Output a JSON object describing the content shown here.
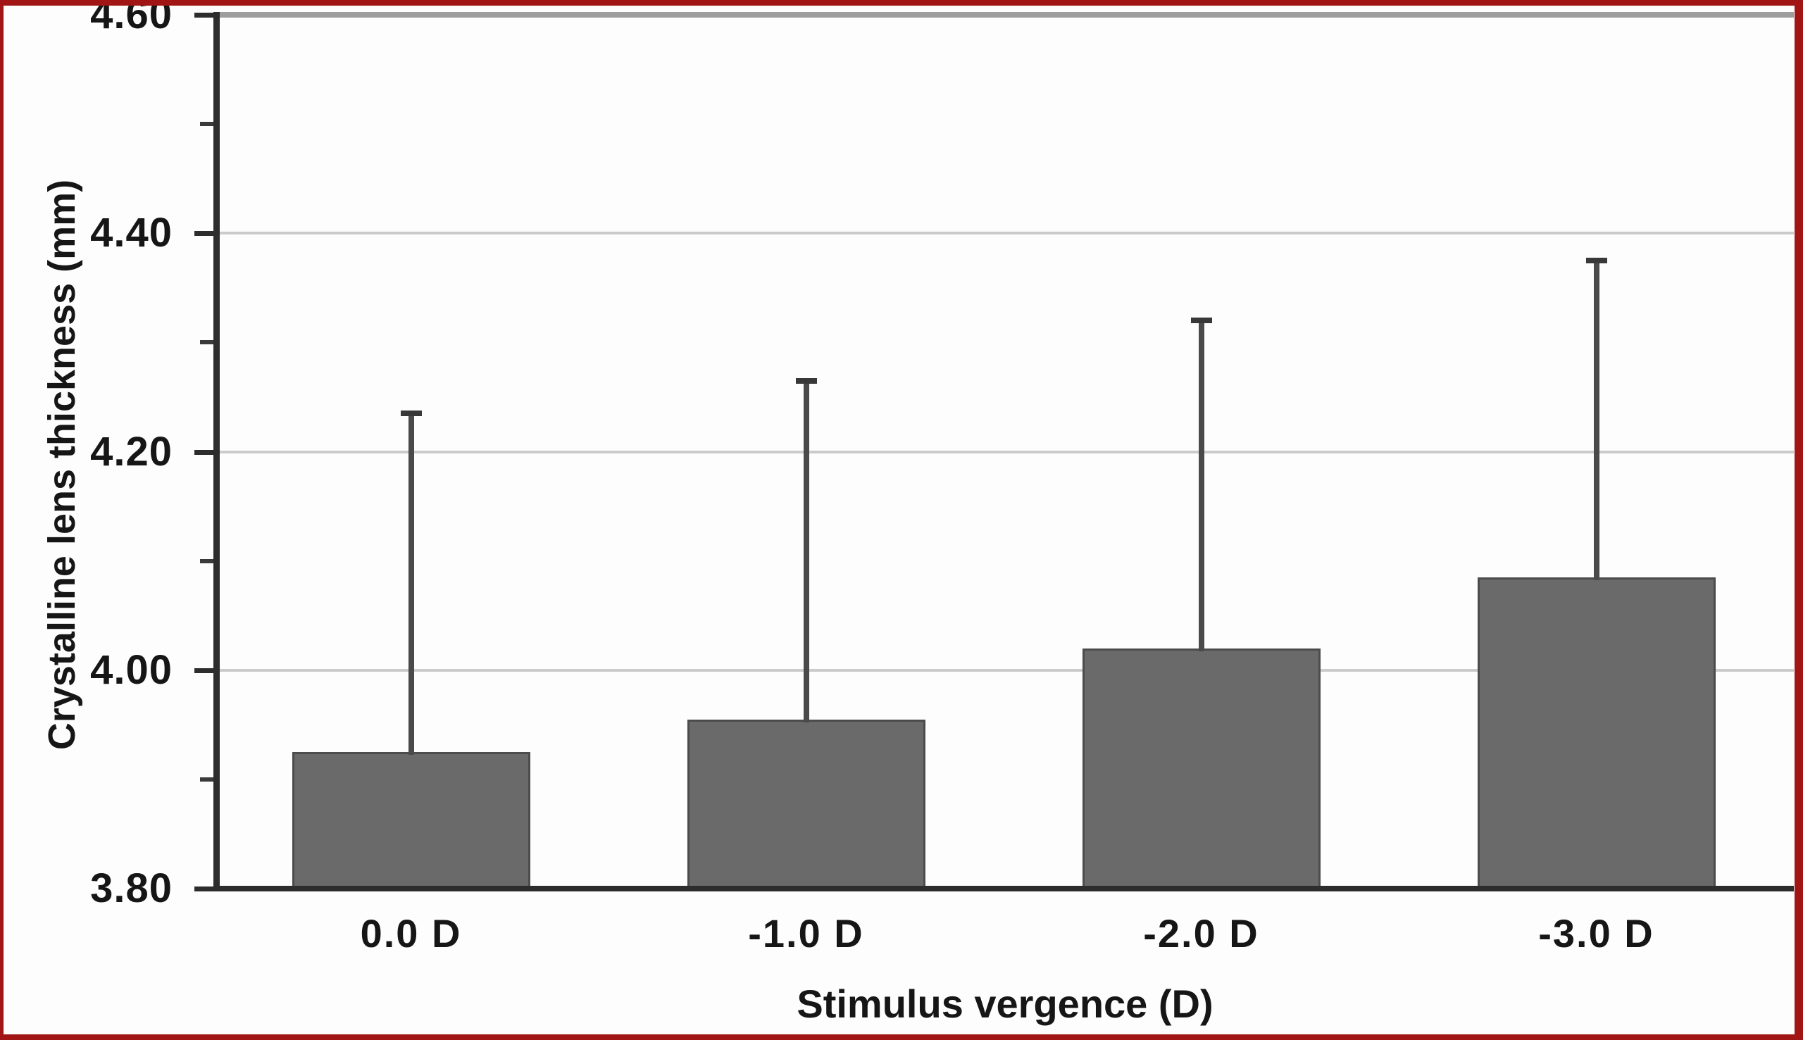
{
  "figure": {
    "frame_color": "#a21515",
    "background": "#fdfdfd"
  },
  "chart_data": {
    "type": "bar",
    "title": "",
    "categories": [
      "0.0 D",
      "-1.0 D",
      "-2.0 D",
      "-3.0 D"
    ],
    "values": [
      3.925,
      3.955,
      4.02,
      4.085
    ],
    "errors_upper": [
      0.31,
      0.31,
      0.3,
      0.29
    ],
    "xlabel": "Stimulus vergence (D)",
    "ylabel": "Crystalline lens thickness (mm)",
    "ylim": [
      3.8,
      4.6
    ],
    "ytick_values": [
      4.6,
      4.4,
      4.2,
      4.0,
      3.8
    ],
    "ytick_labels": [
      "4.60",
      "4.40",
      "4.20",
      "4.00",
      "3.80"
    ],
    "ytick_minor_values": [
      4.5,
      4.3,
      4.1,
      3.9
    ],
    "grid": "horizontal-major",
    "legend": "none",
    "error_bars": "upper-only",
    "bar_color": "#6a6a6a",
    "bar_edge_color": "#4c4c4c",
    "error_color": "#4a4a4a",
    "grid_color": "#cbcbcb",
    "top_frame_color": "#9d9d9d",
    "axis_color": "#2d2d2d",
    "text_color": "#161616"
  }
}
